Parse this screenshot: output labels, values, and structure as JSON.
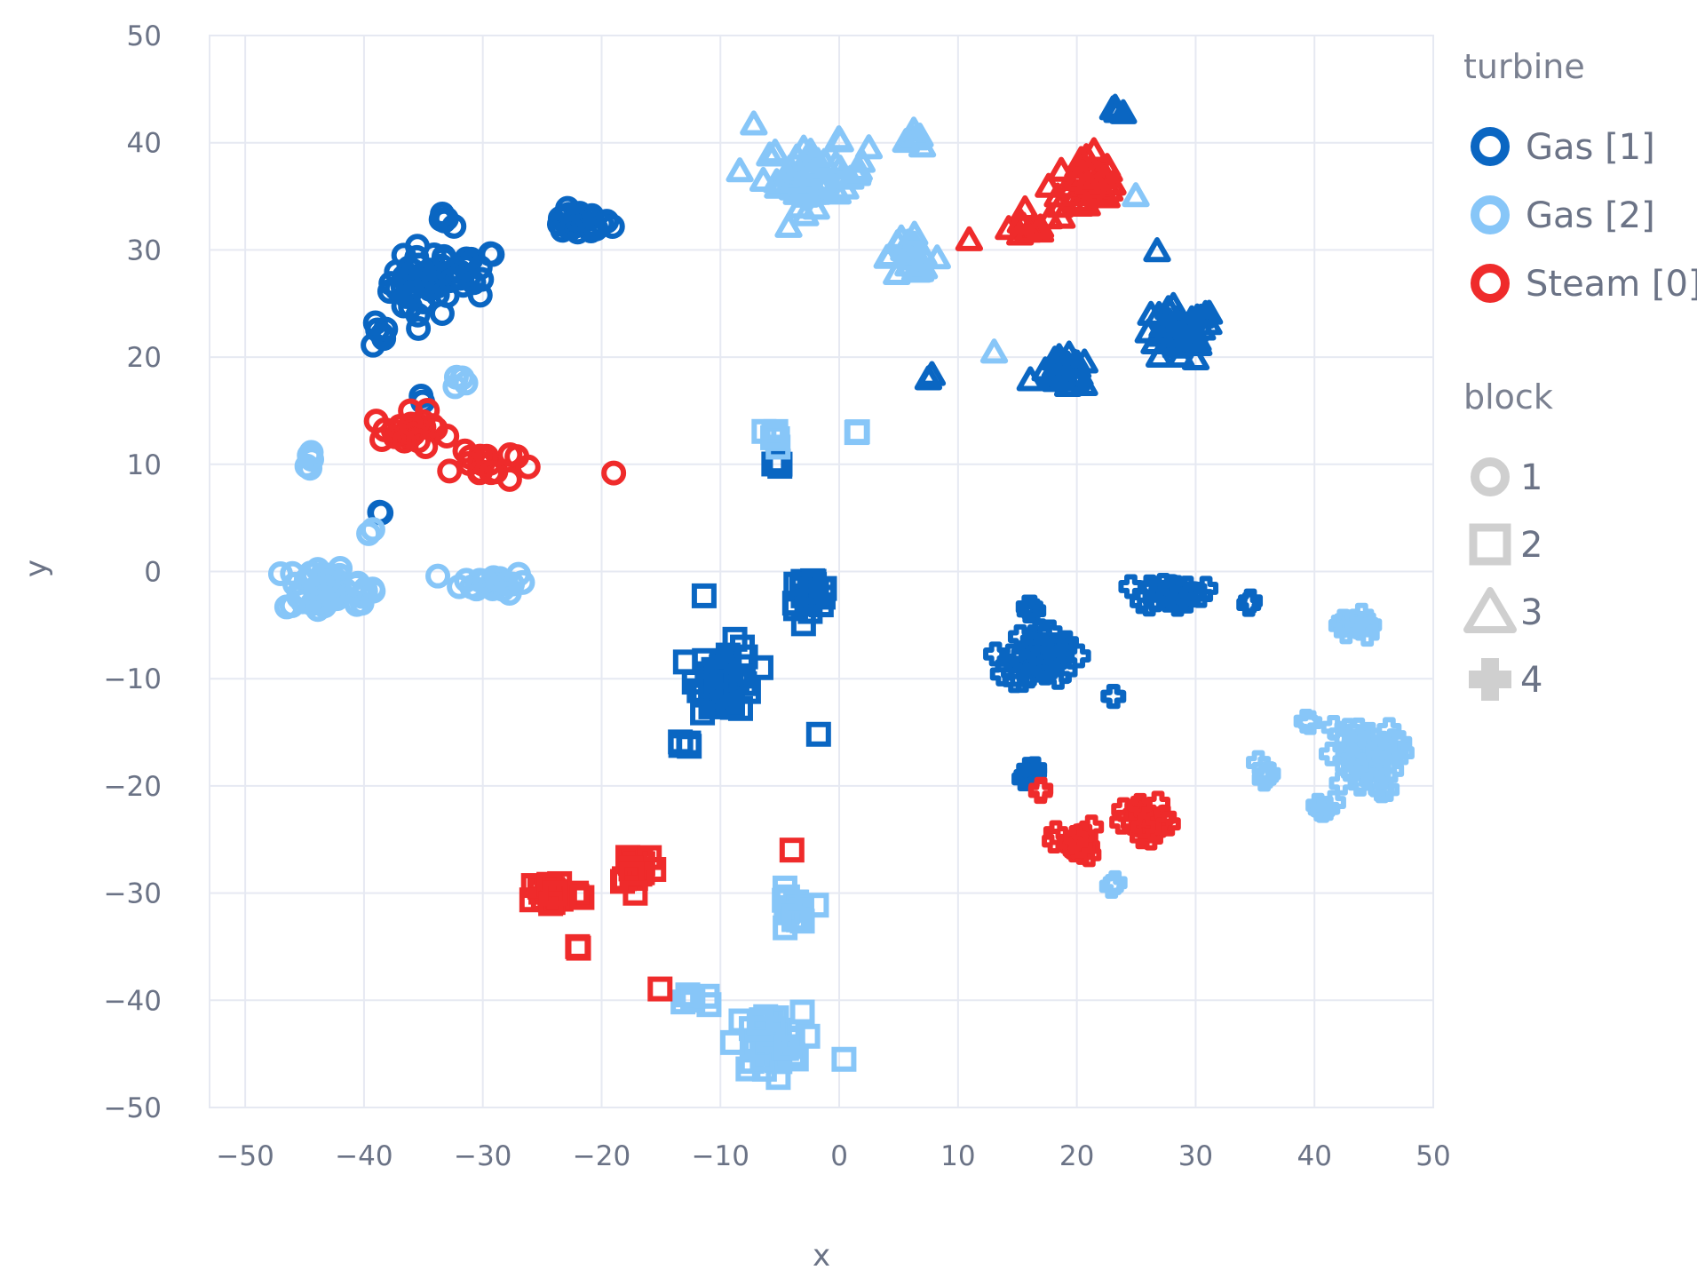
{
  "chart_data": {
    "type": "scatter",
    "xlabel": "x",
    "ylabel": "y",
    "xlim": [
      -53,
      50
    ],
    "ylim": [
      -50,
      50
    ],
    "xticks": [
      -50,
      -40,
      -30,
      -20,
      -10,
      0,
      10,
      20,
      30,
      40,
      50
    ],
    "yticks": [
      -50,
      -40,
      -30,
      -20,
      -10,
      0,
      10,
      20,
      30,
      40,
      50
    ],
    "tick_labels_x": [
      "−50",
      "−40",
      "−30",
      "−20",
      "−10",
      "0",
      "10",
      "20",
      "30",
      "40",
      "50"
    ],
    "tick_labels_y": [
      "−50",
      "−40",
      "−30",
      "−20",
      "−10",
      "0",
      "10",
      "20",
      "30",
      "40",
      "50"
    ],
    "grid": true,
    "legend_placement": "right",
    "legend": {
      "color_title": "turbine",
      "symbol_title": "block",
      "color_entries": [
        {
          "label": "Gas [1]",
          "color": "#0a66c2"
        },
        {
          "label": "Gas [2]",
          "color": "#87c6f8"
        },
        {
          "label": "Steam [0]",
          "color": "#ef2b2b"
        }
      ],
      "symbol_entries": [
        {
          "label": "1",
          "symbol": "circle"
        },
        {
          "label": "2",
          "symbol": "square"
        },
        {
          "label": "3",
          "symbol": "triangle"
        },
        {
          "label": "4",
          "symbol": "cross"
        }
      ],
      "symbol_color": "#cfcfcf"
    },
    "clusters": [
      {
        "turbine": "Gas [1]",
        "block": "1",
        "center": [
          -35,
          27
        ],
        "spread": [
          2.5,
          3
        ],
        "n": 40
      },
      {
        "turbine": "Gas [1]",
        "block": "1",
        "center": [
          -31,
          28
        ],
        "spread": [
          2,
          2
        ],
        "n": 18
      },
      {
        "turbine": "Gas [1]",
        "block": "1",
        "center": [
          -22,
          32.5
        ],
        "spread": [
          2.5,
          1
        ],
        "n": 25
      },
      {
        "turbine": "Gas [1]",
        "block": "1",
        "center": [
          -39,
          22
        ],
        "spread": [
          1,
          1.3
        ],
        "n": 7
      },
      {
        "turbine": "Gas [1]",
        "block": "1",
        "center": [
          -33,
          32.5
        ],
        "spread": [
          1,
          0.8
        ],
        "n": 5
      },
      {
        "turbine": "Gas [1]",
        "block": "1",
        "center": [
          -38.5,
          5.5
        ],
        "spread": [
          0.2,
          0.2
        ],
        "n": 2
      },
      {
        "turbine": "Gas [1]",
        "block": "1",
        "center": [
          -35,
          16
        ],
        "spread": [
          0.3,
          0.3
        ],
        "n": 2
      },
      {
        "turbine": "Gas [2]",
        "block": "1",
        "center": [
          -44,
          -1.5
        ],
        "spread": [
          2.4,
          2.2
        ],
        "n": 45
      },
      {
        "turbine": "Gas [2]",
        "block": "1",
        "center": [
          -40,
          -2
        ],
        "spread": [
          1.2,
          1.6
        ],
        "n": 10
      },
      {
        "turbine": "Gas [2]",
        "block": "1",
        "center": [
          -29,
          -1
        ],
        "spread": [
          2.5,
          0.9
        ],
        "n": 25
      },
      {
        "turbine": "Gas [2]",
        "block": "1",
        "center": [
          -44.5,
          10.5
        ],
        "spread": [
          0.4,
          1.2
        ],
        "n": 5
      },
      {
        "turbine": "Gas [2]",
        "block": "1",
        "center": [
          -39.5,
          4
        ],
        "spread": [
          0.2,
          0.4
        ],
        "n": 2
      },
      {
        "turbine": "Gas [2]",
        "block": "1",
        "center": [
          -32,
          18
        ],
        "spread": [
          0.6,
          0.6
        ],
        "n": 4
      },
      {
        "turbine": "Steam [0]",
        "block": "1",
        "center": [
          -36,
          13
        ],
        "spread": [
          3,
          1.6
        ],
        "n": 25
      },
      {
        "turbine": "Steam [0]",
        "block": "1",
        "center": [
          -30,
          10
        ],
        "spread": [
          2.5,
          1.6
        ],
        "n": 18
      },
      {
        "turbine": "Steam [0]",
        "block": "1",
        "center": [
          -19,
          9
        ],
        "spread": [
          0.2,
          0.2
        ],
        "n": 1
      },
      {
        "turbine": "Gas [2]",
        "block": "3",
        "center": [
          -2,
          37
        ],
        "spread": [
          4,
          2.6
        ],
        "n": 55
      },
      {
        "turbine": "Gas [2]",
        "block": "3",
        "center": [
          6,
          29.5
        ],
        "spread": [
          2.2,
          1.5
        ],
        "n": 22
      },
      {
        "turbine": "Gas [2]",
        "block": "3",
        "center": [
          6,
          40.5
        ],
        "spread": [
          0.8,
          0.6
        ],
        "n": 6
      },
      {
        "turbine": "Gas [2]",
        "block": "3",
        "center": [
          -7,
          41.5
        ],
        "spread": [
          0.3,
          0.3
        ],
        "n": 1
      },
      {
        "turbine": "Steam [0]",
        "block": "3",
        "center": [
          21,
          36
        ],
        "spread": [
          3,
          3
        ],
        "n": 40
      },
      {
        "turbine": "Steam [0]",
        "block": "3",
        "center": [
          16,
          32
        ],
        "spread": [
          1.5,
          1
        ],
        "n": 10
      },
      {
        "turbine": "Steam [0]",
        "block": "3",
        "center": [
          11,
          31
        ],
        "spread": [
          0.3,
          0.3
        ],
        "n": 1
      },
      {
        "turbine": "Gas [1]",
        "block": "3",
        "center": [
          28.5,
          22
        ],
        "spread": [
          3,
          2.4
        ],
        "n": 45
      },
      {
        "turbine": "Gas [1]",
        "block": "3",
        "center": [
          19,
          18.5
        ],
        "spread": [
          2,
          1.3
        ],
        "n": 25
      },
      {
        "turbine": "Gas [1]",
        "block": "3",
        "center": [
          23.5,
          43
        ],
        "spread": [
          0.8,
          0.4
        ],
        "n": 4
      },
      {
        "turbine": "Gas [1]",
        "block": "3",
        "center": [
          27,
          30
        ],
        "spread": [
          0.2,
          0.2
        ],
        "n": 1
      },
      {
        "turbine": "Gas [1]",
        "block": "3",
        "center": [
          8,
          18.5
        ],
        "spread": [
          0.4,
          0.4
        ],
        "n": 2
      },
      {
        "turbine": "Gas [2]",
        "block": "3",
        "center": [
          25,
          35
        ],
        "spread": [
          0.2,
          0.2
        ],
        "n": 1
      },
      {
        "turbine": "Gas [2]",
        "block": "3",
        "center": [
          13,
          20.5
        ],
        "spread": [
          0.2,
          0.2
        ],
        "n": 1
      },
      {
        "turbine": "Gas [1]",
        "block": "2",
        "center": [
          -9.5,
          -10
        ],
        "spread": [
          2.2,
          2.8
        ],
        "n": 50
      },
      {
        "turbine": "Gas [1]",
        "block": "2",
        "center": [
          -2.5,
          -2
        ],
        "spread": [
          1.6,
          1.3
        ],
        "n": 25
      },
      {
        "turbine": "Gas [1]",
        "block": "2",
        "center": [
          -13,
          -16
        ],
        "spread": [
          0.8,
          0.3
        ],
        "n": 4
      },
      {
        "turbine": "Gas [1]",
        "block": "2",
        "center": [
          -5,
          10
        ],
        "spread": [
          0.4,
          0.6
        ],
        "n": 4
      },
      {
        "turbine": "Gas [1]",
        "block": "2",
        "center": [
          -2,
          -15
        ],
        "spread": [
          0.2,
          0.2
        ],
        "n": 1
      },
      {
        "turbine": "Gas [1]",
        "block": "2",
        "center": [
          -11.5,
          -2.2
        ],
        "spread": [
          0.2,
          0.2
        ],
        "n": 1
      },
      {
        "turbine": "Gas [2]",
        "block": "2",
        "center": [
          -4,
          -32
        ],
        "spread": [
          1.2,
          2
        ],
        "n": 18
      },
      {
        "turbine": "Gas [2]",
        "block": "2",
        "center": [
          -6,
          -44
        ],
        "spread": [
          2.6,
          2.6
        ],
        "n": 45
      },
      {
        "turbine": "Gas [2]",
        "block": "2",
        "center": [
          -12,
          -40
        ],
        "spread": [
          1,
          0.8
        ],
        "n": 6
      },
      {
        "turbine": "Gas [2]",
        "block": "2",
        "center": [
          -5.5,
          12.5
        ],
        "spread": [
          0.9,
          0.9
        ],
        "n": 7
      },
      {
        "turbine": "Gas [2]",
        "block": "2",
        "center": [
          0.5,
          -45.5
        ],
        "spread": [
          0.2,
          0.2
        ],
        "n": 1
      },
      {
        "turbine": "Gas [2]",
        "block": "2",
        "center": [
          1.5,
          13
        ],
        "spread": [
          0.2,
          0.4
        ],
        "n": 2
      },
      {
        "turbine": "Steam [0]",
        "block": "2",
        "center": [
          -24,
          -30
        ],
        "spread": [
          2,
          1.2
        ],
        "n": 30
      },
      {
        "turbine": "Steam [0]",
        "block": "2",
        "center": [
          -17,
          -27.5
        ],
        "spread": [
          1.6,
          1.6
        ],
        "n": 18
      },
      {
        "turbine": "Steam [0]",
        "block": "2",
        "center": [
          -22,
          -35
        ],
        "spread": [
          0.3,
          0.2
        ],
        "n": 2
      },
      {
        "turbine": "Steam [0]",
        "block": "2",
        "center": [
          -15,
          -39
        ],
        "spread": [
          0.3,
          0.3
        ],
        "n": 1
      },
      {
        "turbine": "Steam [0]",
        "block": "2",
        "center": [
          -4,
          -26
        ],
        "spread": [
          0.2,
          0.2
        ],
        "n": 1
      },
      {
        "turbine": "Gas [1]",
        "block": "4",
        "center": [
          17,
          -8
        ],
        "spread": [
          2.4,
          2.4
        ],
        "n": 45
      },
      {
        "turbine": "Gas [1]",
        "block": "4",
        "center": [
          28,
          -2
        ],
        "spread": [
          2.4,
          1
        ],
        "n": 30
      },
      {
        "turbine": "Gas [1]",
        "block": "4",
        "center": [
          16,
          -19
        ],
        "spread": [
          0.8,
          1
        ],
        "n": 8
      },
      {
        "turbine": "Gas [1]",
        "block": "4",
        "center": [
          16,
          -3.5
        ],
        "spread": [
          0.6,
          0.5
        ],
        "n": 4
      },
      {
        "turbine": "Gas [1]",
        "block": "4",
        "center": [
          23,
          -11.5
        ],
        "spread": [
          0.2,
          0.3
        ],
        "n": 2
      },
      {
        "turbine": "Gas [1]",
        "block": "4",
        "center": [
          34.5,
          -3
        ],
        "spread": [
          0.3,
          0.2
        ],
        "n": 2
      },
      {
        "turbine": "Gas [2]",
        "block": "4",
        "center": [
          44,
          -17.5
        ],
        "spread": [
          2.6,
          2.8
        ],
        "n": 50
      },
      {
        "turbine": "Gas [2]",
        "block": "4",
        "center": [
          43.5,
          -5
        ],
        "spread": [
          1.2,
          1.2
        ],
        "n": 12
      },
      {
        "turbine": "Gas [2]",
        "block": "4",
        "center": [
          35.5,
          -18.5
        ],
        "spread": [
          0.6,
          1
        ],
        "n": 5
      },
      {
        "turbine": "Gas [2]",
        "block": "4",
        "center": [
          39.5,
          -14
        ],
        "spread": [
          0.2,
          0.2
        ],
        "n": 2
      },
      {
        "turbine": "Gas [2]",
        "block": "4",
        "center": [
          41,
          -22
        ],
        "spread": [
          0.8,
          0.6
        ],
        "n": 5
      },
      {
        "turbine": "Gas [2]",
        "block": "4",
        "center": [
          23,
          -29
        ],
        "spread": [
          0.3,
          0.3
        ],
        "n": 2
      },
      {
        "turbine": "Steam [0]",
        "block": "4",
        "center": [
          20,
          -25.5
        ],
        "spread": [
          1.6,
          1.5
        ],
        "n": 22
      },
      {
        "turbine": "Steam [0]",
        "block": "4",
        "center": [
          26,
          -23.5
        ],
        "spread": [
          1.8,
          1.6
        ],
        "n": 25
      },
      {
        "turbine": "Steam [0]",
        "block": "4",
        "center": [
          17,
          -20.5
        ],
        "spread": [
          0.3,
          0.3
        ],
        "n": 2
      }
    ]
  }
}
